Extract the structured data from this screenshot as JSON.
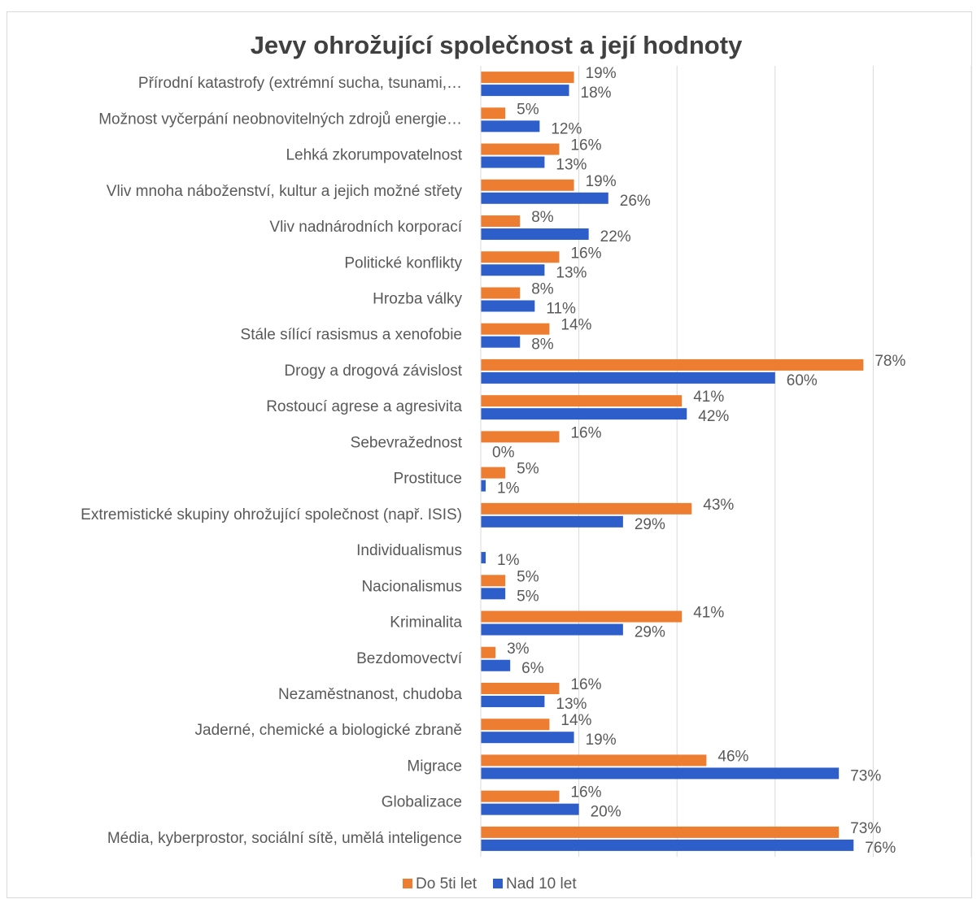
{
  "chart_data": {
    "type": "hbar",
    "title": "Jevy ohrožující společnost a její hodnoty",
    "categories": [
      "Přírodní katastrofy (extrémní sucha, tsunami,…",
      "Možnost vyčerpání neobnovitelných zdrojů energie…",
      "Lehká zkorumpovatelnost",
      "Vliv mnoha náboženství, kultur a jejich možné střety ",
      "Vliv nadnárodních korporací",
      "Politické konflikty ",
      "Hrozba války",
      "Stále sílící rasismus a xenofobie",
      "Drogy a drogová závislost",
      "Rostoucí agrese a agresivita",
      "Sebevražednost",
      "Prostituce",
      "Extremistické skupiny ohrožující společnost (např. ISIS)",
      "Individualismus",
      "Nacionalismus",
      "Kriminalita",
      "Bezdomovectví",
      "Nezaměstnanost, chudoba",
      "Jaderné, chemické a biologické zbraně",
      "Migrace",
      "Globalizace",
      "Média, kyberprostor, sociální sítě, umělá inteligence"
    ],
    "series": [
      {
        "name": "Do 5ti let",
        "color": "#ed7d31",
        "values": [
          19,
          5,
          16,
          19,
          8,
          16,
          8,
          14,
          78,
          41,
          16,
          5,
          43,
          null,
          5,
          41,
          3,
          16,
          14,
          46,
          16,
          73
        ],
        "value_labels": [
          "19%",
          "5%",
          "16%",
          "19%",
          "8%",
          "16%",
          "8%",
          "14%",
          "78%",
          "41%",
          "16%",
          "5%",
          "43%",
          null,
          "5%",
          "41%",
          "3%",
          "16%",
          "14%",
          "46%",
          "16%",
          "73%"
        ]
      },
      {
        "name": "Nad 10 let",
        "color": "#2e5ec9",
        "values": [
          18,
          12,
          13,
          26,
          22,
          13,
          11,
          8,
          60,
          42,
          0,
          1,
          29,
          1,
          5,
          29,
          6,
          13,
          19,
          73,
          20,
          76
        ],
        "value_labels": [
          "18%",
          "12%",
          "13%",
          "26%",
          "22%",
          "13%",
          "11%",
          "8%",
          "60%",
          "42%",
          "0%",
          "1%",
          "29%",
          "1%",
          "5%",
          "29%",
          "6%",
          "13%",
          "19%",
          "73%",
          "20%",
          "76%"
        ]
      }
    ],
    "xlim": [
      0,
      100
    ],
    "xticks": [
      0,
      20,
      40,
      60,
      80,
      100
    ],
    "grid": true,
    "legend": "bottom"
  }
}
